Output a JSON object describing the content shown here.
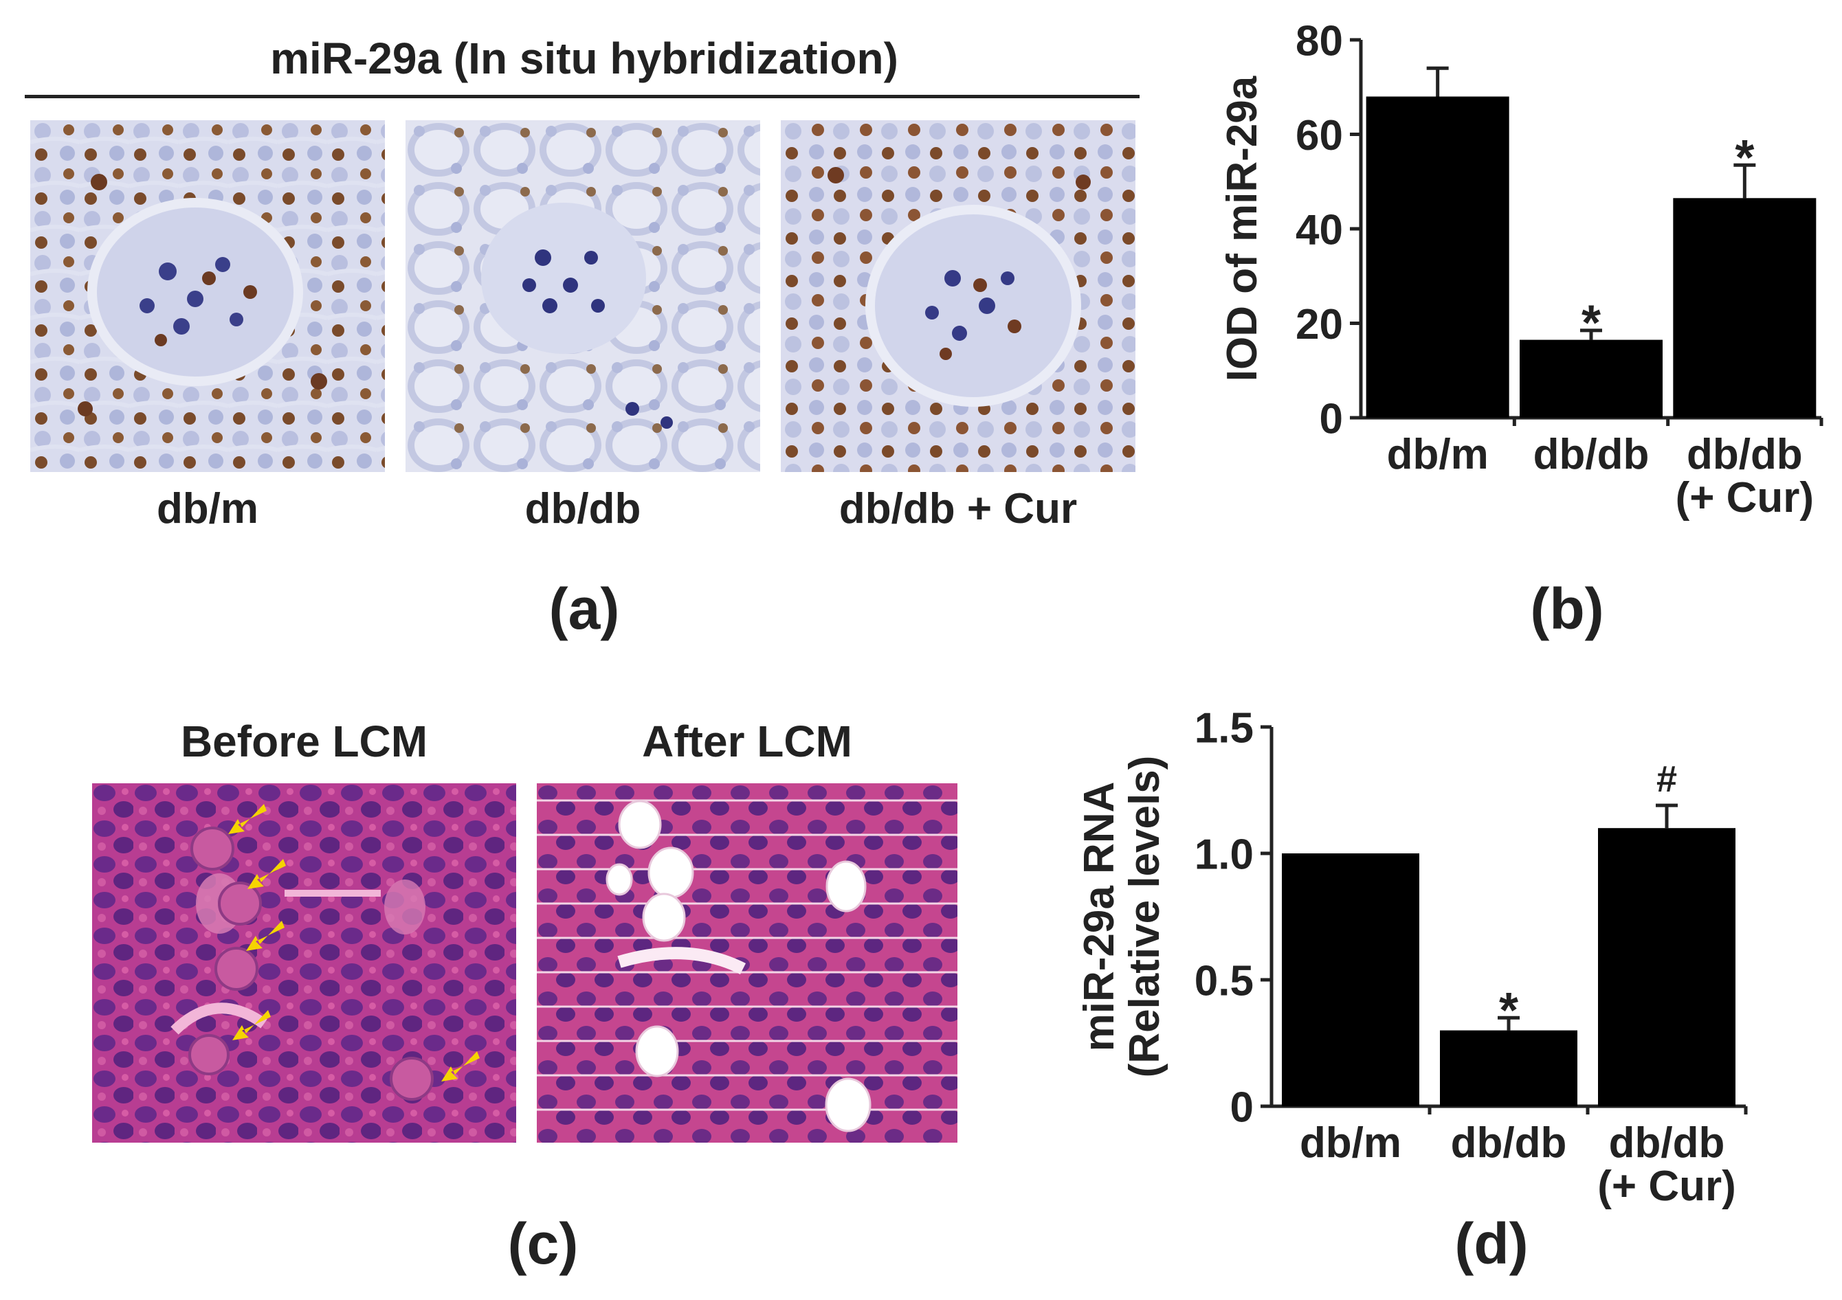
{
  "panel_a": {
    "title": "miR-29a (In situ hybridization)",
    "image_labels": [
      "db/m",
      "db/db",
      "db/db + Cur"
    ],
    "panel_label": "(a)"
  },
  "panel_b": {
    "panel_label": "(b)"
  },
  "panel_c": {
    "image_labels": [
      "Before LCM",
      "After LCM"
    ],
    "panel_label": "(c)"
  },
  "panel_d": {
    "panel_label": "(d)"
  },
  "chart_data": [
    {
      "type": "bar",
      "panel": "b",
      "ylabel": "IOD of miR-29a",
      "ylim": [
        0,
        80
      ],
      "yticks": [
        0,
        20,
        40,
        60,
        80
      ],
      "categories": [
        "db/m",
        "db/db",
        "db/db (+ Cur)"
      ],
      "category_lines": [
        [
          "db/m"
        ],
        [
          "db/db"
        ],
        [
          "db/db",
          "(+ Cur)"
        ]
      ],
      "values": [
        68,
        16.5,
        46.5
      ],
      "errors": [
        6,
        2,
        7
      ],
      "annotations": [
        "",
        "*",
        "*"
      ],
      "bar_color": "#000000",
      "grid": false
    },
    {
      "type": "bar",
      "panel": "d",
      "ylabel_lines": [
        "miR-29a RNA",
        "(Relative levels)"
      ],
      "ylim": [
        0,
        1.5
      ],
      "yticks": [
        "0",
        "0.5",
        "1.0",
        "1.5"
      ],
      "ytick_values": [
        0,
        0.5,
        1.0,
        1.5
      ],
      "categories": [
        "db/m",
        "db/db",
        "db/db (+ Cur)"
      ],
      "category_lines": [
        [
          "db/m"
        ],
        [
          "db/db"
        ],
        [
          "db/db",
          "(+ Cur)"
        ]
      ],
      "values": [
        1.0,
        0.3,
        1.1
      ],
      "errors": [
        0,
        0.05,
        0.09
      ],
      "annotations": [
        "",
        "*",
        "#"
      ],
      "bar_color": "#000000",
      "grid": false
    }
  ]
}
